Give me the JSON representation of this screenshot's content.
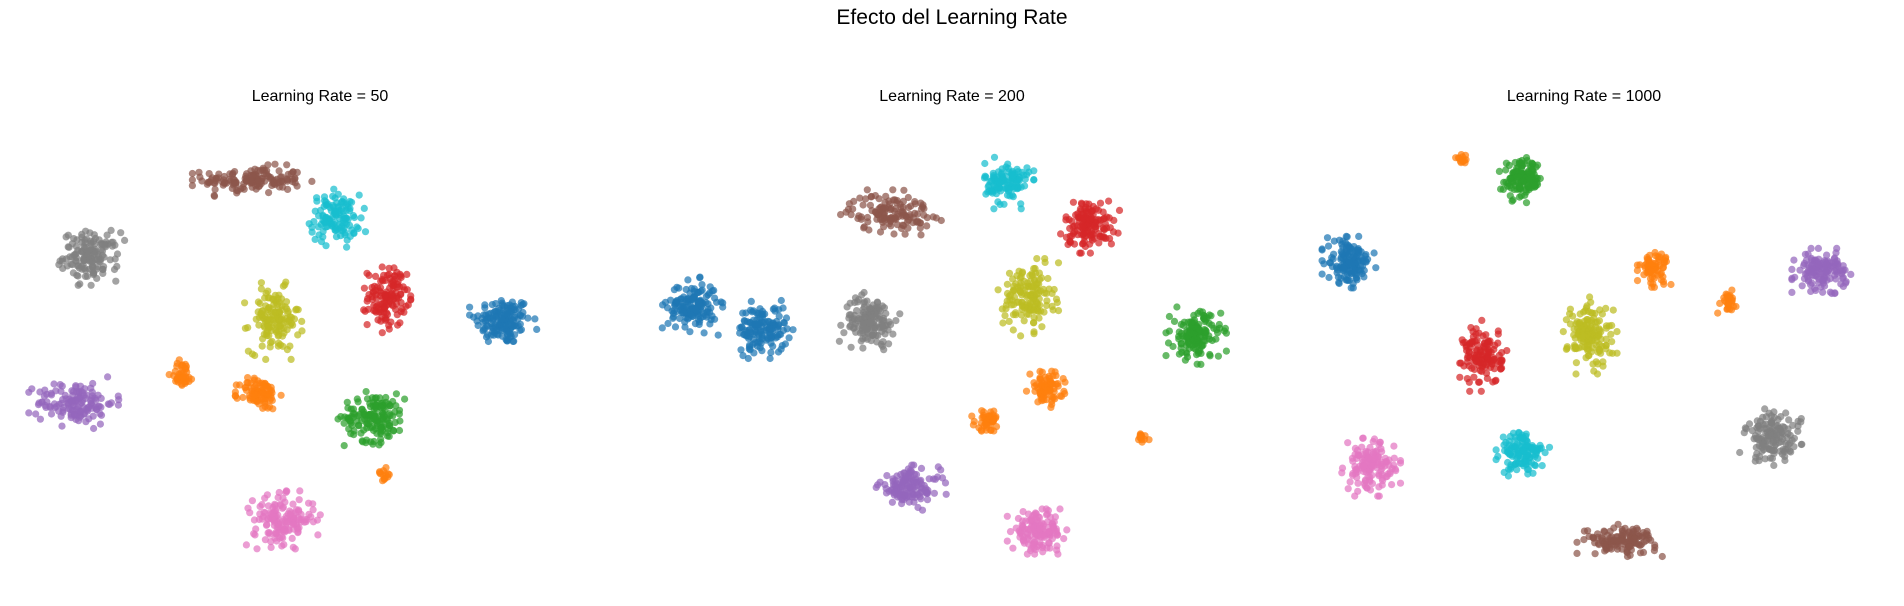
{
  "figure": {
    "title": "Efecto del Learning Rate"
  },
  "colors": {
    "0": "#1f77b4",
    "1": "#ff7f0e",
    "2": "#2ca02c",
    "3": "#d62728",
    "4": "#9467bd",
    "5": "#8c564b",
    "6": "#e377c2",
    "7": "#7f7f7f",
    "8": "#bcbd22",
    "9": "#17becf"
  },
  "chart_data": [
    {
      "type": "scatter",
      "title": "Learning Rate = 50",
      "axes_visible": false,
      "grid": false,
      "xlim": [
        -95,
        95
      ],
      "ylim": [
        -70,
        70
      ],
      "clusters": [
        {
          "label": "0",
          "cx": 60,
          "cy": 10,
          "rx": 10,
          "ry": 9,
          "n": 150
        },
        {
          "label": "5",
          "cx": -22,
          "cy": 58,
          "rx": 18,
          "ry": 5,
          "n": 140
        },
        {
          "label": "9",
          "cx": 5,
          "cy": 45,
          "rx": 9,
          "ry": 9,
          "n": 120
        },
        {
          "label": "7",
          "cx": -75,
          "cy": 32,
          "rx": 10,
          "ry": 9,
          "n": 140
        },
        {
          "label": "3",
          "cx": 22,
          "cy": 18,
          "rx": 7,
          "ry": 11,
          "n": 130
        },
        {
          "label": "8",
          "cx": -15,
          "cy": 10,
          "rx": 9,
          "ry": 12,
          "n": 140
        },
        {
          "label": "4",
          "cx": -80,
          "cy": -18,
          "rx": 14,
          "ry": 8,
          "n": 140
        },
        {
          "label": "1",
          "cx": -20,
          "cy": -15,
          "rx": 7,
          "ry": 6,
          "n": 90
        },
        {
          "label": "1",
          "cx": -45,
          "cy": -8,
          "rx": 4,
          "ry": 5,
          "n": 40
        },
        {
          "label": "2",
          "cx": 18,
          "cy": -23,
          "rx": 11,
          "ry": 9,
          "n": 150
        },
        {
          "label": "6",
          "cx": -12,
          "cy": -58,
          "rx": 11,
          "ry": 9,
          "n": 150
        },
        {
          "label": "1",
          "cx": 21,
          "cy": -42,
          "rx": 2.5,
          "ry": 2.5,
          "n": 14
        }
      ]
    },
    {
      "type": "scatter",
      "title": "Learning Rate = 200",
      "axes_visible": false,
      "grid": false,
      "xlim": [
        -95,
        95
      ],
      "ylim": [
        -70,
        70
      ],
      "clusters": [
        {
          "label": "0",
          "cx": -85,
          "cy": 15,
          "rx": 9,
          "ry": 9,
          "n": 150
        },
        {
          "label": "0",
          "cx": -62,
          "cy": 7,
          "rx": 9,
          "ry": 9,
          "n": 140
        },
        {
          "label": "5",
          "cx": -20,
          "cy": 47,
          "rx": 15,
          "ry": 7,
          "n": 130
        },
        {
          "label": "9",
          "cx": 18,
          "cy": 57,
          "rx": 8,
          "ry": 8,
          "n": 120
        },
        {
          "label": "3",
          "cx": 45,
          "cy": 43,
          "rx": 9,
          "ry": 9,
          "n": 140
        },
        {
          "label": "7",
          "cx": -27,
          "cy": 10,
          "rx": 9,
          "ry": 9,
          "n": 140
        },
        {
          "label": "8",
          "cx": 25,
          "cy": 18,
          "rx": 9,
          "ry": 12,
          "n": 150
        },
        {
          "label": "2",
          "cx": 80,
          "cy": 5,
          "rx": 9,
          "ry": 9,
          "n": 150
        },
        {
          "label": "1",
          "cx": 31,
          "cy": -13,
          "rx": 6,
          "ry": 6,
          "n": 80
        },
        {
          "label": "1",
          "cx": 12,
          "cy": -24,
          "rx": 5,
          "ry": 4,
          "n": 50
        },
        {
          "label": "1",
          "cx": 62,
          "cy": -30,
          "rx": 2.5,
          "ry": 2.5,
          "n": 14
        },
        {
          "label": "4",
          "cx": -14,
          "cy": -47,
          "rx": 11,
          "ry": 7,
          "n": 130
        },
        {
          "label": "6",
          "cx": 28,
          "cy": -62,
          "rx": 9,
          "ry": 7,
          "n": 140
        }
      ]
    },
    {
      "type": "scatter",
      "title": "Learning Rate = 1000",
      "axes_visible": false,
      "grid": false,
      "xlim": [
        -95,
        95
      ],
      "ylim": [
        -70,
        70
      ],
      "clusters": [
        {
          "label": "1",
          "cx": -40,
          "cy": 65,
          "rx": 2,
          "ry": 2,
          "n": 14
        },
        {
          "label": "2",
          "cx": -20,
          "cy": 58,
          "rx": 7,
          "ry": 7,
          "n": 120
        },
        {
          "label": "0",
          "cx": -77,
          "cy": 30,
          "rx": 8,
          "ry": 8,
          "n": 140
        },
        {
          "label": "4",
          "cx": 78,
          "cy": 27,
          "rx": 9,
          "ry": 7,
          "n": 130
        },
        {
          "label": "1",
          "cx": 23,
          "cy": 28,
          "rx": 5,
          "ry": 6,
          "n": 70
        },
        {
          "label": "1",
          "cx": 47,
          "cy": 17,
          "rx": 3,
          "ry": 4,
          "n": 30
        },
        {
          "label": "8",
          "cx": 2,
          "cy": 5,
          "rx": 8,
          "ry": 12,
          "n": 150
        },
        {
          "label": "3",
          "cx": -33,
          "cy": -2,
          "rx": 7,
          "ry": 11,
          "n": 130
        },
        {
          "label": "7",
          "cx": 62,
          "cy": -30,
          "rx": 10,
          "ry": 9,
          "n": 140
        },
        {
          "label": "6",
          "cx": -70,
          "cy": -40,
          "rx": 9,
          "ry": 9,
          "n": 140
        },
        {
          "label": "9",
          "cx": -20,
          "cy": -35,
          "rx": 8,
          "ry": 8,
          "n": 120
        },
        {
          "label": "5",
          "cx": 12,
          "cy": -65,
          "rx": 13,
          "ry": 5,
          "n": 130
        }
      ]
    }
  ]
}
